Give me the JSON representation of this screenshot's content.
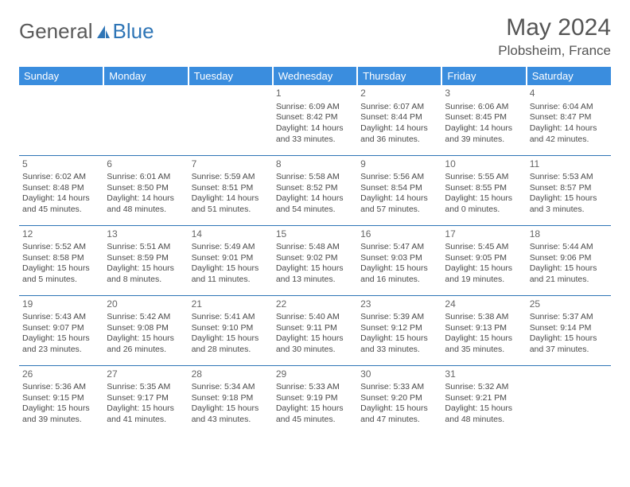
{
  "brand": {
    "part1": "General",
    "part2": "Blue"
  },
  "title": "May 2024",
  "location": "Plobsheim, France",
  "colors": {
    "header_bg": "#3a8dde",
    "border": "#2e75b6",
    "text": "#4a4a4a",
    "title_text": "#555555"
  },
  "day_headers": [
    "Sunday",
    "Monday",
    "Tuesday",
    "Wednesday",
    "Thursday",
    "Friday",
    "Saturday"
  ],
  "weeks": [
    [
      null,
      null,
      null,
      {
        "n": "1",
        "sr": "Sunrise: 6:09 AM",
        "ss": "Sunset: 8:42 PM",
        "d1": "Daylight: 14 hours",
        "d2": "and 33 minutes."
      },
      {
        "n": "2",
        "sr": "Sunrise: 6:07 AM",
        "ss": "Sunset: 8:44 PM",
        "d1": "Daylight: 14 hours",
        "d2": "and 36 minutes."
      },
      {
        "n": "3",
        "sr": "Sunrise: 6:06 AM",
        "ss": "Sunset: 8:45 PM",
        "d1": "Daylight: 14 hours",
        "d2": "and 39 minutes."
      },
      {
        "n": "4",
        "sr": "Sunrise: 6:04 AM",
        "ss": "Sunset: 8:47 PM",
        "d1": "Daylight: 14 hours",
        "d2": "and 42 minutes."
      }
    ],
    [
      {
        "n": "5",
        "sr": "Sunrise: 6:02 AM",
        "ss": "Sunset: 8:48 PM",
        "d1": "Daylight: 14 hours",
        "d2": "and 45 minutes."
      },
      {
        "n": "6",
        "sr": "Sunrise: 6:01 AM",
        "ss": "Sunset: 8:50 PM",
        "d1": "Daylight: 14 hours",
        "d2": "and 48 minutes."
      },
      {
        "n": "7",
        "sr": "Sunrise: 5:59 AM",
        "ss": "Sunset: 8:51 PM",
        "d1": "Daylight: 14 hours",
        "d2": "and 51 minutes."
      },
      {
        "n": "8",
        "sr": "Sunrise: 5:58 AM",
        "ss": "Sunset: 8:52 PM",
        "d1": "Daylight: 14 hours",
        "d2": "and 54 minutes."
      },
      {
        "n": "9",
        "sr": "Sunrise: 5:56 AM",
        "ss": "Sunset: 8:54 PM",
        "d1": "Daylight: 14 hours",
        "d2": "and 57 minutes."
      },
      {
        "n": "10",
        "sr": "Sunrise: 5:55 AM",
        "ss": "Sunset: 8:55 PM",
        "d1": "Daylight: 15 hours",
        "d2": "and 0 minutes."
      },
      {
        "n": "11",
        "sr": "Sunrise: 5:53 AM",
        "ss": "Sunset: 8:57 PM",
        "d1": "Daylight: 15 hours",
        "d2": "and 3 minutes."
      }
    ],
    [
      {
        "n": "12",
        "sr": "Sunrise: 5:52 AM",
        "ss": "Sunset: 8:58 PM",
        "d1": "Daylight: 15 hours",
        "d2": "and 5 minutes."
      },
      {
        "n": "13",
        "sr": "Sunrise: 5:51 AM",
        "ss": "Sunset: 8:59 PM",
        "d1": "Daylight: 15 hours",
        "d2": "and 8 minutes."
      },
      {
        "n": "14",
        "sr": "Sunrise: 5:49 AM",
        "ss": "Sunset: 9:01 PM",
        "d1": "Daylight: 15 hours",
        "d2": "and 11 minutes."
      },
      {
        "n": "15",
        "sr": "Sunrise: 5:48 AM",
        "ss": "Sunset: 9:02 PM",
        "d1": "Daylight: 15 hours",
        "d2": "and 13 minutes."
      },
      {
        "n": "16",
        "sr": "Sunrise: 5:47 AM",
        "ss": "Sunset: 9:03 PM",
        "d1": "Daylight: 15 hours",
        "d2": "and 16 minutes."
      },
      {
        "n": "17",
        "sr": "Sunrise: 5:45 AM",
        "ss": "Sunset: 9:05 PM",
        "d1": "Daylight: 15 hours",
        "d2": "and 19 minutes."
      },
      {
        "n": "18",
        "sr": "Sunrise: 5:44 AM",
        "ss": "Sunset: 9:06 PM",
        "d1": "Daylight: 15 hours",
        "d2": "and 21 minutes."
      }
    ],
    [
      {
        "n": "19",
        "sr": "Sunrise: 5:43 AM",
        "ss": "Sunset: 9:07 PM",
        "d1": "Daylight: 15 hours",
        "d2": "and 23 minutes."
      },
      {
        "n": "20",
        "sr": "Sunrise: 5:42 AM",
        "ss": "Sunset: 9:08 PM",
        "d1": "Daylight: 15 hours",
        "d2": "and 26 minutes."
      },
      {
        "n": "21",
        "sr": "Sunrise: 5:41 AM",
        "ss": "Sunset: 9:10 PM",
        "d1": "Daylight: 15 hours",
        "d2": "and 28 minutes."
      },
      {
        "n": "22",
        "sr": "Sunrise: 5:40 AM",
        "ss": "Sunset: 9:11 PM",
        "d1": "Daylight: 15 hours",
        "d2": "and 30 minutes."
      },
      {
        "n": "23",
        "sr": "Sunrise: 5:39 AM",
        "ss": "Sunset: 9:12 PM",
        "d1": "Daylight: 15 hours",
        "d2": "and 33 minutes."
      },
      {
        "n": "24",
        "sr": "Sunrise: 5:38 AM",
        "ss": "Sunset: 9:13 PM",
        "d1": "Daylight: 15 hours",
        "d2": "and 35 minutes."
      },
      {
        "n": "25",
        "sr": "Sunrise: 5:37 AM",
        "ss": "Sunset: 9:14 PM",
        "d1": "Daylight: 15 hours",
        "d2": "and 37 minutes."
      }
    ],
    [
      {
        "n": "26",
        "sr": "Sunrise: 5:36 AM",
        "ss": "Sunset: 9:15 PM",
        "d1": "Daylight: 15 hours",
        "d2": "and 39 minutes."
      },
      {
        "n": "27",
        "sr": "Sunrise: 5:35 AM",
        "ss": "Sunset: 9:17 PM",
        "d1": "Daylight: 15 hours",
        "d2": "and 41 minutes."
      },
      {
        "n": "28",
        "sr": "Sunrise: 5:34 AM",
        "ss": "Sunset: 9:18 PM",
        "d1": "Daylight: 15 hours",
        "d2": "and 43 minutes."
      },
      {
        "n": "29",
        "sr": "Sunrise: 5:33 AM",
        "ss": "Sunset: 9:19 PM",
        "d1": "Daylight: 15 hours",
        "d2": "and 45 minutes."
      },
      {
        "n": "30",
        "sr": "Sunrise: 5:33 AM",
        "ss": "Sunset: 9:20 PM",
        "d1": "Daylight: 15 hours",
        "d2": "and 47 minutes."
      },
      {
        "n": "31",
        "sr": "Sunrise: 5:32 AM",
        "ss": "Sunset: 9:21 PM",
        "d1": "Daylight: 15 hours",
        "d2": "and 48 minutes."
      },
      null
    ]
  ]
}
